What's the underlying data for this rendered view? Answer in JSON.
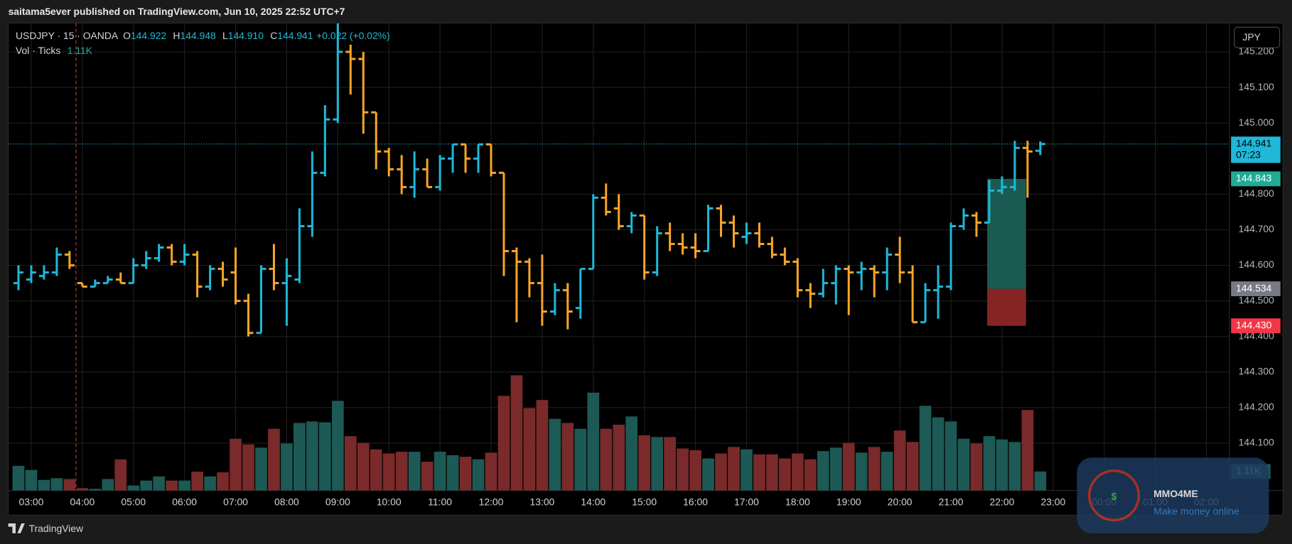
{
  "page": {
    "published": "saitama5ever published on TradingView.com, Jun 10, 2025 22:52 UTC+7",
    "currency_button": "JPY",
    "footer_brand": "TradingView",
    "watermark_title": "MMO4ME",
    "watermark_subtitle": "Make money online"
  },
  "chart_data": {
    "type": "ohlc",
    "legend": {
      "symbol": "USDJPY · 15 · OANDA",
      "fields": [
        {
          "k": "O",
          "v": "144.922"
        },
        {
          "k": "H",
          "v": "144.948"
        },
        {
          "k": "L",
          "v": "144.910"
        },
        {
          "k": "C",
          "v": "144.941"
        }
      ],
      "change": "+0.022 (+0.02%)"
    },
    "up_color": "#1fb8d8",
    "down_color": "#f7a529",
    "x": [
      2.75,
      3,
      3.25,
      3.5,
      3.75,
      4,
      4.25,
      4.5,
      4.75,
      5,
      5.25,
      5.5,
      5.75,
      6,
      6.25,
      6.5,
      6.75,
      7,
      7.25,
      7.5,
      7.75,
      8,
      8.25,
      8.5,
      8.75,
      9,
      9.25,
      9.5,
      9.75,
      10,
      10.25,
      10.5,
      10.75,
      11,
      11.25,
      11.5,
      11.75,
      12,
      12.25,
      12.5,
      12.75,
      13,
      13.25,
      13.5,
      13.75,
      14,
      14.25,
      14.5,
      14.75,
      15,
      15.25,
      15.5,
      15.75,
      16,
      16.25,
      16.5,
      16.75,
      17,
      17.25,
      17.5,
      17.75,
      18,
      18.25,
      18.5,
      18.75,
      19,
      19.25,
      19.5,
      19.75,
      20,
      20.25,
      20.5,
      20.75,
      21,
      21.25,
      21.5,
      21.75,
      22,
      22.25,
      22.5,
      22.75
    ],
    "open": [
      144.55,
      144.56,
      144.57,
      144.58,
      144.63,
      144.55,
      144.54,
      144.55,
      144.56,
      144.55,
      144.6,
      144.62,
      144.65,
      144.61,
      144.63,
      144.54,
      144.59,
      144.58,
      144.5,
      144.41,
      144.59,
      144.55,
      144.56,
      144.71,
      144.86,
      145.01,
      145.2,
      145.18,
      145.03,
      144.92,
      144.87,
      144.82,
      144.87,
      144.82,
      144.9,
      144.94,
      144.9,
      144.94,
      144.86,
      144.64,
      144.61,
      144.55,
      144.47,
      144.53,
      144.48,
      144.59,
      144.79,
      144.76,
      144.71,
      144.74,
      144.58,
      144.69,
      144.66,
      144.65,
      144.64,
      144.76,
      144.72,
      144.68,
      144.69,
      144.66,
      144.63,
      144.61,
      144.53,
      144.52,
      144.55,
      144.59,
      144.58,
      144.59,
      144.58,
      144.63,
      144.58,
      144.44,
      144.53,
      144.54,
      144.71,
      144.74,
      144.72,
      144.81,
      144.82,
      144.93,
      144.922
    ],
    "high": [
      144.6,
      144.6,
      144.6,
      144.65,
      144.64,
      144.55,
      144.56,
      144.57,
      144.58,
      144.62,
      144.64,
      144.66,
      144.66,
      144.66,
      144.64,
      144.6,
      144.61,
      144.65,
      144.52,
      144.6,
      144.66,
      144.62,
      144.76,
      144.92,
      145.05,
      145.28,
      145.22,
      145.2,
      145.03,
      144.93,
      144.91,
      144.92,
      144.9,
      144.91,
      144.94,
      144.94,
      144.94,
      144.94,
      144.86,
      144.65,
      144.62,
      144.63,
      144.55,
      144.55,
      144.59,
      144.8,
      144.83,
      144.8,
      144.75,
      144.74,
      144.71,
      144.72,
      144.69,
      144.69,
      144.77,
      144.77,
      144.74,
      144.72,
      144.72,
      144.68,
      144.65,
      144.62,
      144.55,
      144.59,
      144.6,
      144.6,
      144.61,
      144.6,
      144.65,
      144.68,
      144.6,
      144.55,
      144.6,
      144.72,
      144.76,
      144.75,
      144.84,
      144.85,
      144.95,
      144.95,
      144.948
    ],
    "low": [
      144.53,
      144.55,
      144.56,
      144.57,
      144.59,
      144.54,
      144.54,
      144.55,
      144.55,
      144.55,
      144.59,
      144.61,
      144.6,
      144.6,
      144.51,
      144.53,
      144.54,
      144.49,
      144.4,
      144.41,
      144.53,
      144.43,
      144.55,
      144.68,
      144.85,
      145.0,
      145.08,
      144.97,
      144.87,
      144.85,
      144.8,
      144.79,
      144.82,
      144.81,
      144.86,
      144.86,
      144.86,
      144.85,
      144.57,
      144.44,
      144.51,
      144.43,
      144.46,
      144.42,
      144.45,
      144.59,
      144.74,
      144.7,
      144.69,
      144.56,
      144.57,
      144.64,
      144.63,
      144.62,
      144.64,
      144.68,
      144.65,
      144.66,
      144.65,
      144.62,
      144.6,
      144.51,
      144.48,
      144.51,
      144.49,
      144.46,
      144.53,
      144.51,
      144.53,
      144.55,
      144.44,
      144.44,
      144.45,
      144.53,
      144.7,
      144.68,
      144.72,
      144.8,
      144.81,
      144.79,
      144.91
    ],
    "close": [
      144.58,
      144.58,
      144.58,
      144.63,
      144.6,
      144.54,
      144.55,
      144.56,
      144.55,
      144.6,
      144.62,
      144.65,
      144.61,
      144.63,
      144.54,
      144.59,
      144.56,
      144.5,
      144.41,
      144.59,
      144.55,
      144.57,
      144.71,
      144.86,
      145.01,
      145.2,
      145.18,
      145.03,
      144.92,
      144.87,
      144.82,
      144.87,
      144.82,
      144.9,
      144.94,
      144.9,
      144.94,
      144.86,
      144.64,
      144.61,
      144.55,
      144.47,
      144.53,
      144.47,
      144.59,
      144.79,
      144.75,
      144.71,
      144.74,
      144.58,
      144.69,
      144.66,
      144.65,
      144.64,
      144.76,
      144.72,
      144.69,
      144.69,
      144.66,
      144.63,
      144.61,
      144.53,
      144.52,
      144.55,
      144.59,
      144.58,
      144.59,
      144.58,
      144.63,
      144.58,
      144.44,
      144.53,
      144.54,
      144.71,
      144.74,
      144.72,
      144.81,
      144.82,
      144.93,
      144.92,
      144.941
    ],
    "volume": {
      "name": "Vol · Ticks",
      "up_color": "#1d5955",
      "down_color": "#7a2a2a",
      "last_label": "1.11K",
      "values": [
        1440,
        1200,
        620,
        720,
        670,
        140,
        100,
        670,
        1820,
        290,
        580,
        820,
        580,
        580,
        1100,
        820,
        1060,
        3020,
        2690,
        2500,
        3600,
        2740,
        3940,
        4030,
        3980,
        5230,
        3170,
        2780,
        2400,
        2160,
        2260,
        2260,
        1680,
        2260,
        2060,
        1970,
        1820,
        2210,
        5520,
        6720,
        4800,
        5280,
        4180,
        3940,
        3600,
        5710,
        3600,
        3840,
        4320,
        3220,
        3120,
        3120,
        2450,
        2350,
        1870,
        2160,
        2540,
        2400,
        2110,
        2110,
        1870,
        2160,
        1820,
        2300,
        2500,
        2780,
        2210,
        2540,
        2260,
        3500,
        2830,
        4940,
        4270,
        4030,
        3020,
        2740,
        3170,
        2980,
        2830,
        4700,
        1110
      ]
    },
    "last_price": 144.941,
    "countdown": "07:23",
    "position": {
      "target": 144.843,
      "entry": 144.534,
      "stop": {
        "value": 144.43,
        "label": "144.430"
      },
      "x_start": 21.71,
      "x_end": 22.47,
      "profit_color": "#1b5a50",
      "loss_color": "#862424",
      "target_color": "#22ab94",
      "entry_color": "#787b86",
      "stop_color": "#f23645"
    },
    "session_break": 3.875,
    "xlim": [
      2.55,
      26.45
    ],
    "xticks": [
      {
        "value": 3,
        "label": "03:00"
      },
      {
        "value": 4,
        "label": "04:00"
      },
      {
        "value": 5,
        "label": "05:00"
      },
      {
        "value": 6,
        "label": "06:00"
      },
      {
        "value": 7,
        "label": "07:00"
      },
      {
        "value": 8,
        "label": "08:00"
      },
      {
        "value": 9,
        "label": "09:00"
      },
      {
        "value": 10,
        "label": "10:00"
      },
      {
        "value": 11,
        "label": "11:00"
      },
      {
        "value": 12,
        "label": "12:00"
      },
      {
        "value": 13,
        "label": "13:00"
      },
      {
        "value": 14,
        "label": "14:00"
      },
      {
        "value": 15,
        "label": "15:00"
      },
      {
        "value": 16,
        "label": "16:00"
      },
      {
        "value": 17,
        "label": "17:00"
      },
      {
        "value": 18,
        "label": "18:00"
      },
      {
        "value": 19,
        "label": "19:00"
      },
      {
        "value": 20,
        "label": "20:00"
      },
      {
        "value": 21,
        "label": "21:00"
      },
      {
        "value": 22,
        "label": "22:00"
      },
      {
        "value": 23,
        "label": "23:00"
      },
      {
        "value": 24,
        "label": "00:00"
      },
      {
        "value": 25,
        "label": "01:00"
      },
      {
        "value": 26,
        "label": "02:00"
      }
    ],
    "ylim": [
      143.967,
      145.281
    ],
    "yticks": [
      {
        "value": 144.1,
        "label": "144.100"
      },
      {
        "value": 144.2,
        "label": "144.200"
      },
      {
        "value": 144.3,
        "label": "144.300"
      },
      {
        "value": 144.4,
        "label": "144.400"
      },
      {
        "value": 144.5,
        "label": "144.500"
      },
      {
        "value": 144.6,
        "label": "144.600"
      },
      {
        "value": 144.7,
        "label": "144.700"
      },
      {
        "value": 144.8,
        "label": "144.800"
      },
      {
        "value": 145.0,
        "label": "145.000"
      },
      {
        "value": 145.1,
        "label": "145.100"
      },
      {
        "value": 145.2,
        "label": "145.200"
      }
    ],
    "grid": true
  }
}
